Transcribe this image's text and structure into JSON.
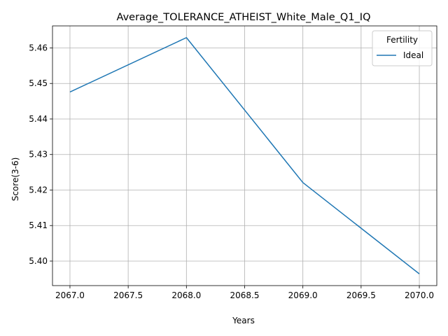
{
  "chart_data": {
    "type": "line",
    "title": "Average_TOLERANCE_ATHEIST_White_Male_Q1_IQ",
    "xlabel": "Years",
    "ylabel": "Score(3-6)",
    "x": [
      2067.0,
      2068.0,
      2069.0,
      2070.0
    ],
    "series": [
      {
        "name": "Ideal",
        "color": "#1f77b4",
        "values": [
          5.4476,
          5.4629,
          5.4221,
          5.3964
        ]
      }
    ],
    "xlim": [
      2066.85,
      2070.15
    ],
    "ylim": [
      5.3931,
      5.4662
    ],
    "x_ticks": [
      "2067.0",
      "2067.5",
      "2068.0",
      "2068.5",
      "2069.0",
      "2069.5",
      "2070.0"
    ],
    "y_ticks": [
      "5.40",
      "5.41",
      "5.42",
      "5.43",
      "5.44",
      "5.45",
      "5.46"
    ],
    "grid": true,
    "legend": {
      "title": "Fertility",
      "placement": "upper-right"
    }
  }
}
